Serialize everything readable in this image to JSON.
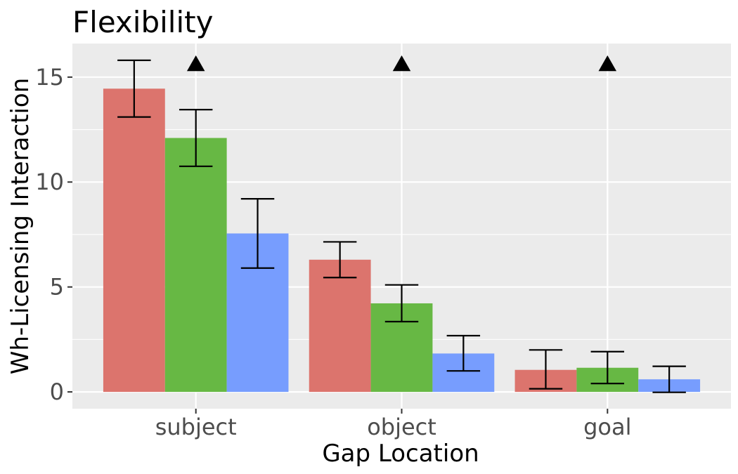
{
  "chart_data": {
    "type": "bar",
    "title": "Flexibility",
    "xlabel": "Gap Location",
    "ylabel": "Wh-Licensing Interaction",
    "categories": [
      "subject",
      "object",
      "goal"
    ],
    "ylim": [
      -0.8,
      16.6
    ],
    "yticks": [
      0,
      5,
      10,
      15
    ],
    "grid": true,
    "legend": "none",
    "series": [
      {
        "name": "series-1",
        "color": "#dc746d",
        "values": [
          14.45,
          6.3,
          1.05
        ],
        "err_low": [
          13.1,
          5.45,
          0.15
        ],
        "err_high": [
          15.8,
          7.15,
          2.0
        ]
      },
      {
        "name": "series-2",
        "color": "#67b844",
        "values": [
          12.1,
          4.22,
          1.15
        ],
        "err_low": [
          10.75,
          3.35,
          0.4
        ],
        "err_high": [
          13.45,
          5.1,
          1.92
        ]
      },
      {
        "name": "series-3",
        "color": "#779dfe",
        "values": [
          7.55,
          1.83,
          0.6
        ],
        "err_low": [
          5.9,
          1.0,
          -0.02
        ],
        "err_high": [
          9.2,
          2.68,
          1.22
        ]
      }
    ],
    "annotations": [
      {
        "category": "subject",
        "marker": "triangle",
        "y": 15.6
      },
      {
        "category": "object",
        "marker": "triangle",
        "y": 15.6
      },
      {
        "category": "goal",
        "marker": "triangle",
        "y": 15.6
      }
    ]
  }
}
